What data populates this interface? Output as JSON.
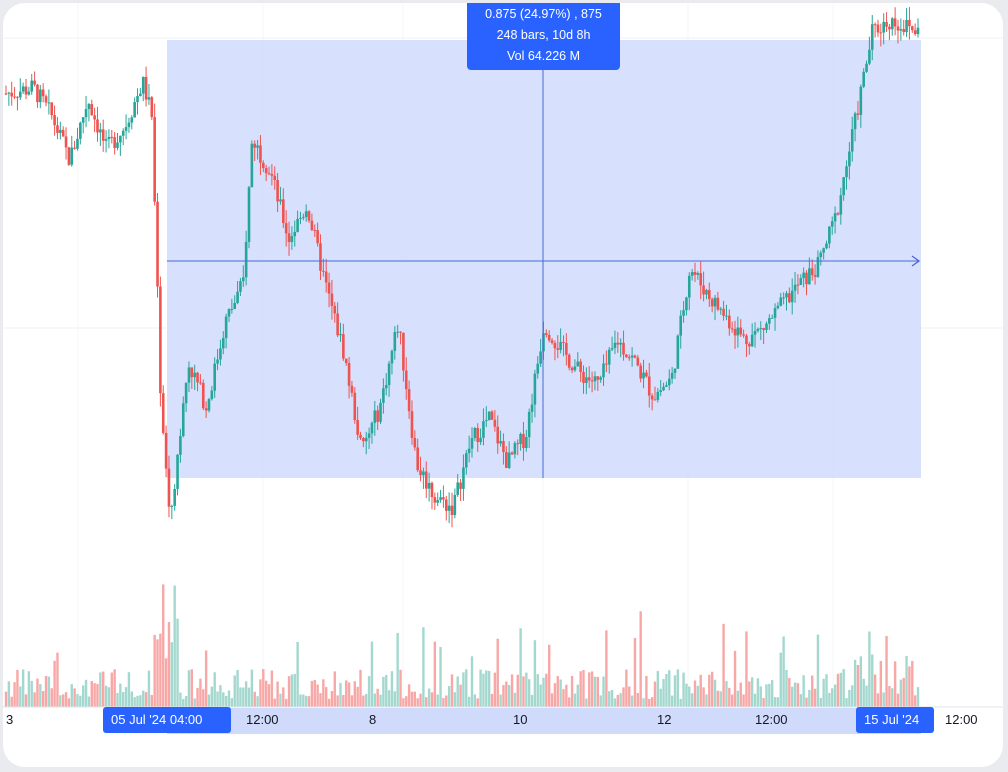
{
  "measure_tooltip": {
    "change": "0.875 (24.97%) , 875",
    "bars": "248 bars, 10d 8h",
    "volume": "Vol 64.226 M"
  },
  "time_axis": {
    "labels": [
      "3",
      "12:00",
      "8",
      "10",
      "12",
      "12:00",
      "12:00"
    ],
    "range_start_badge": "05 Jul '24  04:00",
    "range_end_badge": "15 Jul '24"
  },
  "colors": {
    "up": "#26a69a",
    "down": "#ef5350",
    "up_volume": "#a4d8cf",
    "down_volume": "#f7a8a6",
    "selection_fill": "#d0dbfb",
    "accent": "#2962ff"
  },
  "chart_data": {
    "type": "candlestick",
    "title": "",
    "y_axis_labels": "not shown",
    "x_ticks": [
      "3",
      "05 Jul '24  04:00",
      "12:00",
      "8",
      "10",
      "12",
      "12:00",
      "15 Jul '24",
      "12:00"
    ],
    "selection": {
      "start": "05 Jul '24 04:00",
      "end": "15 Jul '24",
      "price_change": "0.875",
      "percent_change": "24.97%",
      "ticks_change": "875",
      "bars": 248,
      "duration": "10d 8h",
      "volume": "64.226 M"
    },
    "close_path_relative": [
      [
        0.0,
        0.86
      ],
      [
        0.03,
        0.87
      ],
      [
        0.05,
        0.82
      ],
      [
        0.07,
        0.74
      ],
      [
        0.09,
        0.85
      ],
      [
        0.11,
        0.76
      ],
      [
        0.13,
        0.8
      ],
      [
        0.15,
        0.88
      ],
      [
        0.16,
        0.82
      ],
      [
        0.17,
        0.3
      ],
      [
        0.18,
        0.1
      ],
      [
        0.2,
        0.38
      ],
      [
        0.22,
        0.3
      ],
      [
        0.24,
        0.45
      ],
      [
        0.26,
        0.52
      ],
      [
        0.27,
        0.78
      ],
      [
        0.29,
        0.72
      ],
      [
        0.31,
        0.6
      ],
      [
        0.33,
        0.66
      ],
      [
        0.35,
        0.52
      ],
      [
        0.37,
        0.4
      ],
      [
        0.39,
        0.22
      ],
      [
        0.41,
        0.3
      ],
      [
        0.43,
        0.45
      ],
      [
        0.45,
        0.2
      ],
      [
        0.47,
        0.14
      ],
      [
        0.49,
        0.12
      ],
      [
        0.51,
        0.24
      ],
      [
        0.53,
        0.28
      ],
      [
        0.55,
        0.2
      ],
      [
        0.57,
        0.25
      ],
      [
        0.59,
        0.45
      ],
      [
        0.61,
        0.4
      ],
      [
        0.63,
        0.36
      ],
      [
        0.65,
        0.34
      ],
      [
        0.67,
        0.42
      ],
      [
        0.69,
        0.38
      ],
      [
        0.71,
        0.32
      ],
      [
        0.73,
        0.35
      ],
      [
        0.75,
        0.55
      ],
      [
        0.77,
        0.5
      ],
      [
        0.79,
        0.46
      ],
      [
        0.81,
        0.42
      ],
      [
        0.83,
        0.44
      ],
      [
        0.85,
        0.48
      ],
      [
        0.87,
        0.52
      ],
      [
        0.89,
        0.55
      ],
      [
        0.91,
        0.64
      ],
      [
        0.93,
        0.8
      ],
      [
        0.95,
        0.97
      ],
      [
        0.97,
        0.99
      ],
      [
        1.0,
        0.97
      ]
    ],
    "series": [
      {
        "candles": 320
      }
    ]
  }
}
